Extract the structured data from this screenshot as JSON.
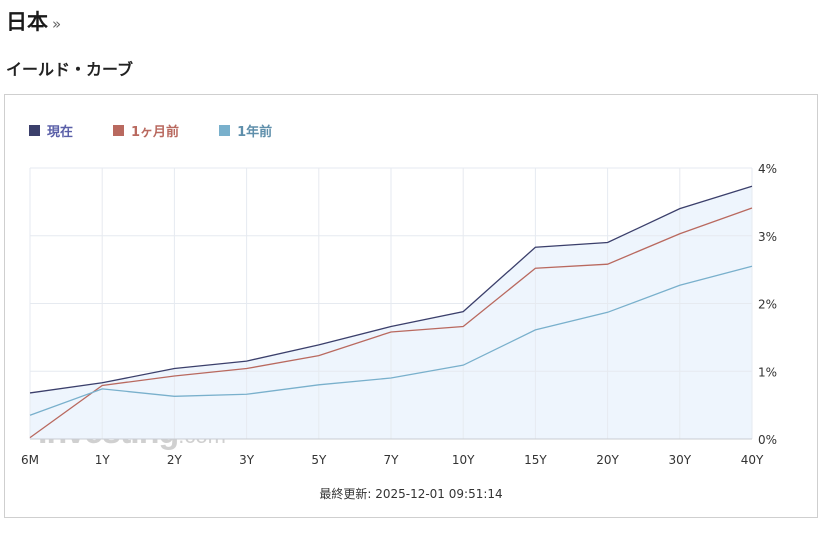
{
  "header": {
    "country": "日本",
    "arrow": "»",
    "section_title": "イールド・カーブ"
  },
  "legend": [
    {
      "label": "現在",
      "color": "#3b3f6b",
      "text_color": "#5a5fa8"
    },
    {
      "label": "1ヶ月前",
      "color": "#b9695f",
      "text_color": "#b9695f"
    },
    {
      "label": "1年前",
      "color": "#79b0cc",
      "text_color": "#5f8fab"
    }
  ],
  "watermark": {
    "brand": "Investing",
    "suffix": ".com"
  },
  "footer": {
    "updated": "最終更新: 2025-12-01 09:51:14"
  },
  "chart_data": {
    "type": "line",
    "categories": [
      "6M",
      "1Y",
      "2Y",
      "3Y",
      "5Y",
      "7Y",
      "10Y",
      "15Y",
      "20Y",
      "30Y",
      "40Y"
    ],
    "series": [
      {
        "name": "現在",
        "color": "#3b3f6b",
        "values": [
          0.68,
          0.83,
          1.04,
          1.15,
          1.39,
          1.66,
          1.88,
          2.83,
          2.9,
          3.4,
          3.73
        ]
      },
      {
        "name": "1ヶ月前",
        "color": "#b9695f",
        "values": [
          0.02,
          0.79,
          0.93,
          1.04,
          1.23,
          1.58,
          1.66,
          2.52,
          2.58,
          3.03,
          3.41
        ]
      },
      {
        "name": "1年前",
        "color": "#79b0cc",
        "values": [
          0.35,
          0.74,
          0.63,
          0.66,
          0.8,
          0.9,
          1.09,
          1.61,
          1.87,
          2.27,
          2.55
        ]
      }
    ],
    "yticks": [
      "0%",
      "1%",
      "2%",
      "3%",
      "4%"
    ],
    "ylim": [
      0,
      4
    ],
    "grid": true,
    "legend_position": "top-left",
    "y_axis_position": "right",
    "area_fill": "#eef5fd"
  }
}
